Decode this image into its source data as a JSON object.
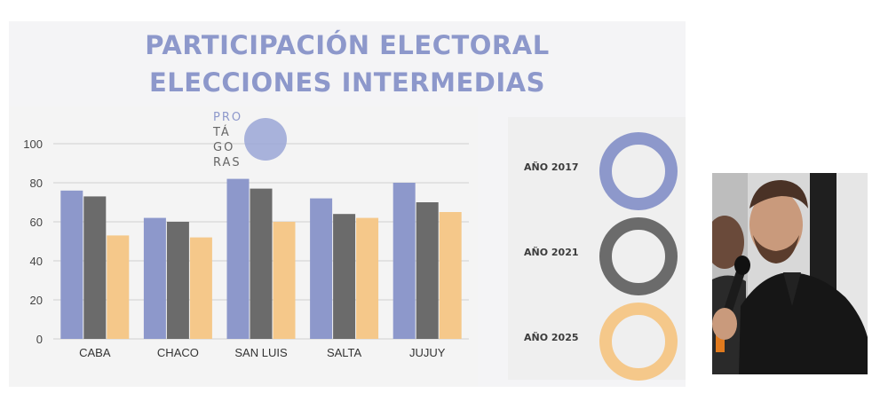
{
  "title": {
    "line1": "PARTICIPACIÓN ELECTORAL",
    "line2": "ELECCIONES INTERMEDIAS"
  },
  "logo": {
    "lines": [
      "PRO",
      "TÁ",
      "GO",
      "RAS"
    ]
  },
  "legend": [
    {
      "label": "AÑO 2017",
      "color": "#8d98cb"
    },
    {
      "label": "AÑO 2021",
      "color": "#6b6b6b"
    },
    {
      "label": "AÑO 2025",
      "color": "#f5c88a"
    }
  ],
  "chart_data": {
    "type": "bar",
    "categories": [
      "CABA",
      "CHACO",
      "SAN LUIS",
      "SALTA",
      "JUJUY"
    ],
    "series": [
      {
        "values": [
          76,
          62,
          82,
          72,
          80
        ],
        "color": "#8d98cb"
      },
      {
        "values": [
          73,
          60,
          77,
          64,
          70
        ],
        "color": "#6b6b6b"
      },
      {
        "values": [
          53,
          52,
          60,
          62,
          65
        ],
        "color": "#f5c88a"
      }
    ],
    "ylim": [
      0,
      100
    ],
    "yticks": [
      0,
      20,
      40,
      60,
      80,
      100
    ],
    "grid": true
  },
  "photo": {
    "alt": "Man speaking into a microphone"
  }
}
